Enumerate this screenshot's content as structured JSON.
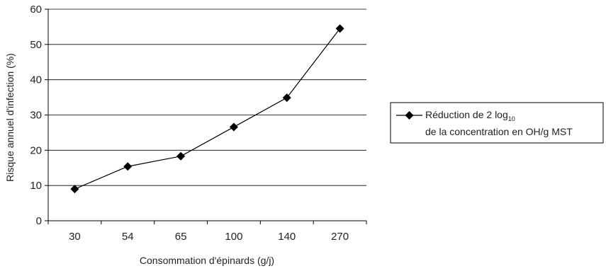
{
  "chart_data": {
    "type": "line",
    "categories": [
      "30",
      "54",
      "65",
      "100",
      "140",
      "270"
    ],
    "y_ticks": [
      "0",
      "10",
      "20",
      "30",
      "40",
      "50",
      "60"
    ],
    "ylim": [
      0,
      60
    ],
    "grid": true,
    "xlabel": "Consommation d'épinards (g/j)",
    "ylabel": "Risque annuel d'infection (%)",
    "legend_position": "right",
    "series": [
      {
        "name_line1_prefix": "Réduction de 2 log",
        "name_line1_sub": "10",
        "name_line2": "de la concentration en OH/g MST",
        "values": [
          9,
          15.4,
          18.3,
          26.6,
          34.9,
          54.5
        ],
        "color": "#000000",
        "marker": "diamond"
      }
    ]
  }
}
